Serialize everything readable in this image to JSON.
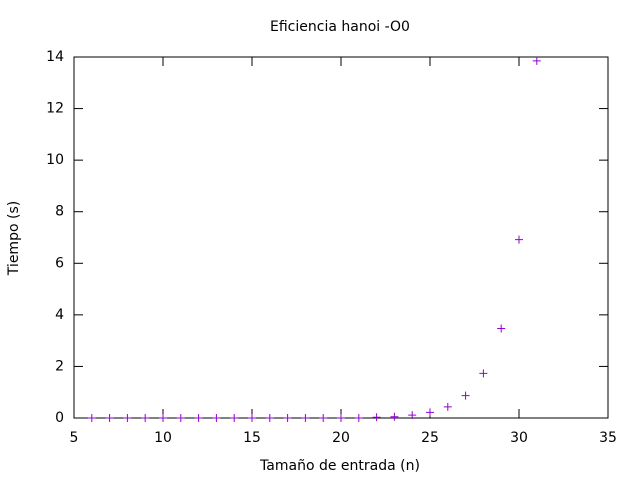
{
  "chart_data": {
    "type": "scatter",
    "title": "Eficiencia hanoi -O0",
    "x_label": "Tamaño de entrada (n)",
    "y_label": "Tiempo (s)",
    "x": [
      6,
      7,
      8,
      9,
      10,
      11,
      12,
      13,
      14,
      15,
      16,
      17,
      18,
      19,
      20,
      21,
      22,
      23,
      24,
      25,
      26,
      27,
      28,
      29,
      30,
      31
    ],
    "values": [
      0,
      0,
      0,
      0,
      0,
      0,
      0,
      0,
      0,
      0,
      0,
      0,
      0,
      0,
      0,
      0,
      0.03,
      0.05,
      0.11,
      0.22,
      0.43,
      0.87,
      1.73,
      3.47,
      6.92,
      13.85
    ],
    "color": "#9400d3",
    "xlim": [
      5,
      35
    ],
    "xticks": [
      5,
      10,
      15,
      20,
      25,
      30,
      35
    ],
    "ylim": [
      0,
      14
    ],
    "yticks": [
      0,
      2,
      4,
      6,
      8,
      10,
      12,
      14
    ],
    "grid": false
  }
}
